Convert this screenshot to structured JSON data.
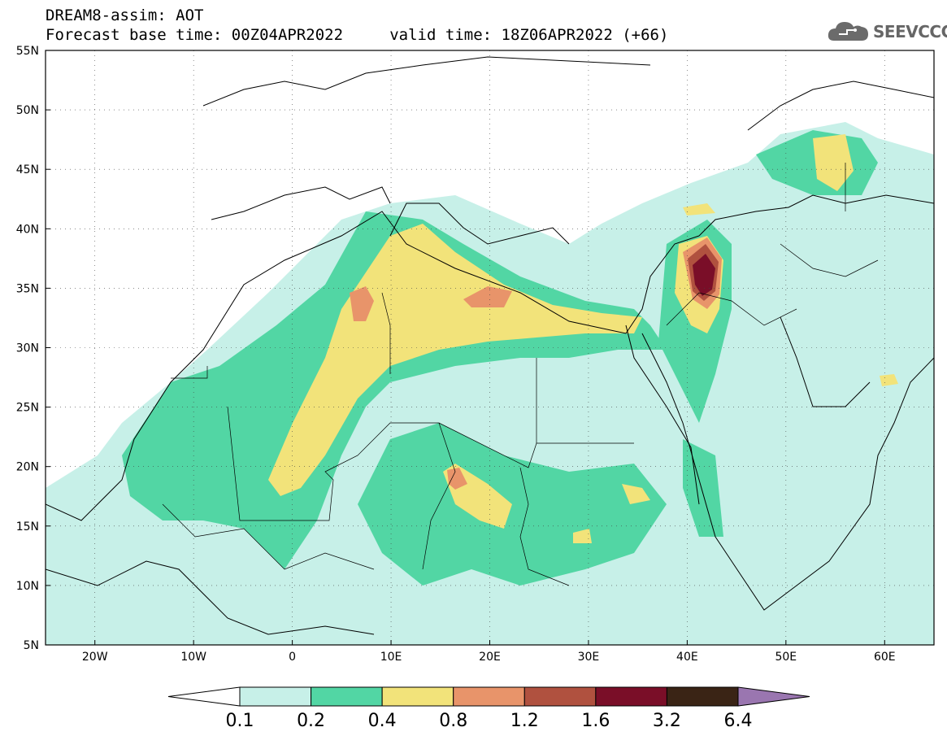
{
  "title": {
    "line1": "DREAM8-assim: AOT",
    "line2": "Forecast base time: 00Z04APR2022     valid time: 18Z06APR2022 (+66)"
  },
  "logo": {
    "text": "SEEVCCC",
    "icon": "cloud-icon"
  },
  "map": {
    "lon_range": [
      -25,
      65
    ],
    "lat_range": [
      5,
      55
    ],
    "lon_ticks": [
      {
        "v": -20,
        "label": "20W"
      },
      {
        "v": -10,
        "label": "10W"
      },
      {
        "v": 0,
        "label": "0"
      },
      {
        "v": 10,
        "label": "10E"
      },
      {
        "v": 20,
        "label": "20E"
      },
      {
        "v": 30,
        "label": "30E"
      },
      {
        "v": 40,
        "label": "40E"
      },
      {
        "v": 50,
        "label": "50E"
      },
      {
        "v": 60,
        "label": "60E"
      }
    ],
    "lat_ticks": [
      {
        "v": 55,
        "label": "55N"
      },
      {
        "v": 50,
        "label": "50N"
      },
      {
        "v": 45,
        "label": "45N"
      },
      {
        "v": 40,
        "label": "40N"
      },
      {
        "v": 35,
        "label": "35N"
      },
      {
        "v": 30,
        "label": "30N"
      },
      {
        "v": 25,
        "label": "25N"
      },
      {
        "v": 20,
        "label": "20N"
      },
      {
        "v": 15,
        "label": "15N"
      },
      {
        "v": 10,
        "label": "10N"
      },
      {
        "v": 5,
        "label": "5N"
      }
    ],
    "grid": true
  },
  "colorbar": {
    "bins": [
      {
        "color": "#c7f0e8"
      },
      {
        "color": "#52d6a4"
      },
      {
        "color": "#f2e37a"
      },
      {
        "color": "#e8946a"
      },
      {
        "color": "#b0513f"
      },
      {
        "color": "#7a0e28"
      },
      {
        "color": "#3a2415"
      }
    ],
    "under_color": "#ffffff",
    "over_color": "#9a76b0",
    "labels": [
      "0.1",
      "0.2",
      "0.4",
      "0.8",
      "1.2",
      "1.6",
      "3.2",
      "6.4"
    ]
  }
}
